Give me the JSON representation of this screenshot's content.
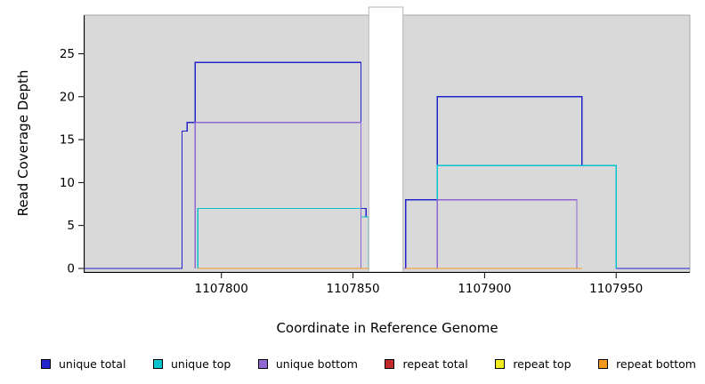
{
  "figure": {
    "background": "#ffffff"
  },
  "chart_data": {
    "type": "line",
    "subtype": "step-coverage",
    "title": "",
    "xlabel": "Coordinate in Reference Genome",
    "ylabel": "Read Coverage Depth",
    "xlim": [
      1107748,
      1107978
    ],
    "ylim": [
      0,
      29.5
    ],
    "xticks": [
      1107800,
      1107850,
      1107900,
      1107950
    ],
    "yticks": [
      0,
      5,
      10,
      15,
      20,
      25
    ],
    "plot_background": "#d9d9d9",
    "frame_color": "#a8a8a8",
    "axis_color": "#000000",
    "grid": false,
    "legend_position": "bottom",
    "gap_region": {
      "x_start": 1107856,
      "x_end": 1107869,
      "color": "#ffffff"
    },
    "series": [
      {
        "name": "unique total",
        "color": "#2424cb",
        "segments": [
          [
            [
              1107748,
              0
            ],
            [
              1107785,
              16
            ],
            [
              1107787,
              17
            ],
            [
              1107790,
              24
            ],
            [
              1107853,
              7
            ],
            [
              1107855,
              6
            ],
            [
              1107856,
              0
            ],
            [
              1107870,
              8
            ],
            [
              1107882,
              20
            ],
            [
              1107937,
              12
            ],
            [
              1107950,
              0
            ],
            [
              1107978,
              0
            ]
          ]
        ]
      },
      {
        "name": "unique top",
        "color": "#06c3ce",
        "segments": [
          [
            [
              1107791,
              0
            ],
            [
              1107791,
              7
            ],
            [
              1107853,
              6
            ],
            [
              1107856,
              0
            ],
            [
              1107882,
              12
            ],
            [
              1107950,
              0
            ]
          ]
        ]
      },
      {
        "name": "unique bottom",
        "color": "#9168d2",
        "segments": [
          [
            [
              1107790,
              0
            ],
            [
              1107790,
              17
            ],
            [
              1107853,
              0
            ],
            [
              1107882,
              8
            ],
            [
              1107935,
              0
            ]
          ]
        ]
      },
      {
        "name": "repeat total",
        "color": "#c22b2b",
        "segments": [
          [
            [
              1107791,
              0
            ],
            [
              1107856,
              0
            ]
          ],
          [
            [
              1107870,
              0
            ],
            [
              1107937,
              0
            ]
          ]
        ]
      },
      {
        "name": "repeat top",
        "color": "#f2ec1f",
        "segments": [
          [
            [
              1107791,
              0
            ],
            [
              1107856,
              0
            ]
          ],
          [
            [
              1107870,
              0
            ],
            [
              1107937,
              0
            ]
          ]
        ]
      },
      {
        "name": "repeat bottom",
        "color": "#f5991f",
        "segments": [
          [
            [
              1107791,
              0
            ],
            [
              1107856,
              0
            ]
          ],
          [
            [
              1107870,
              0
            ],
            [
              1107937,
              0
            ]
          ]
        ]
      }
    ]
  }
}
